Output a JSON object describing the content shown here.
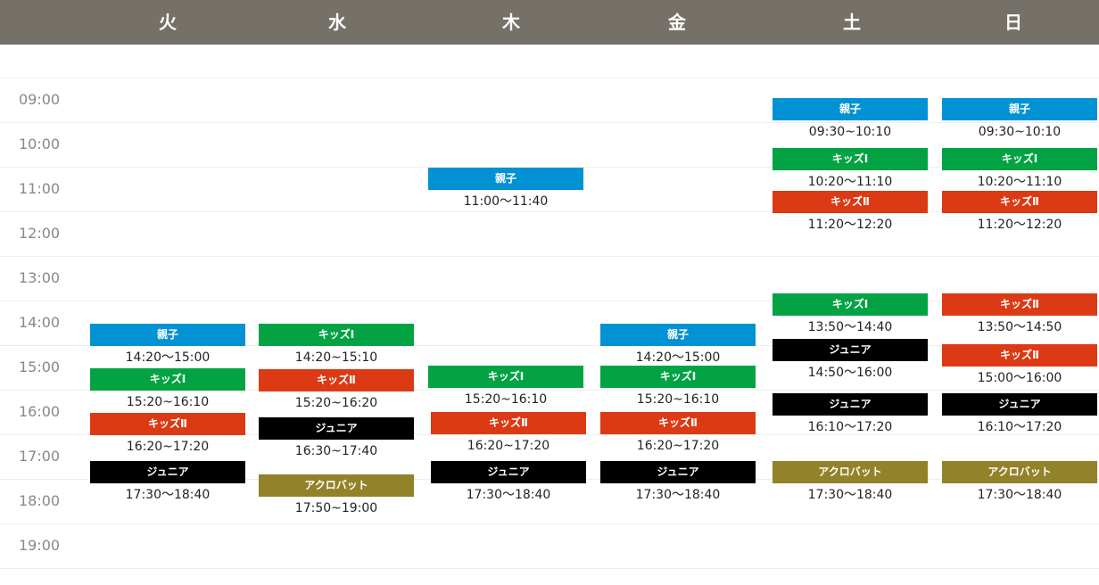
{
  "days": [
    {
      "label": "火",
      "center": 188
    },
    {
      "label": "水",
      "center": 378
    },
    {
      "label": "木",
      "center": 573
    },
    {
      "label": "金",
      "center": 759
    },
    {
      "label": "土",
      "center": 955
    },
    {
      "label": "日",
      "center": 1136
    }
  ],
  "hours": [
    "09:00",
    "10:00",
    "11:00",
    "12:00",
    "13:00",
    "14:00",
    "15:00",
    "16:00",
    "17:00",
    "18:00",
    "19:00"
  ],
  "classes": [
    {
      "day": 0,
      "name": "親子",
      "time": "14:20～15:00",
      "color": "blue"
    },
    {
      "day": 0,
      "name": "キッズⅠ",
      "time": "15:20~16:10",
      "color": "green"
    },
    {
      "day": 0,
      "name": "キッズⅡ",
      "time": "16:20~17:20",
      "color": "red"
    },
    {
      "day": 0,
      "name": "ジュニア",
      "time": "17:30～18:40",
      "color": "black"
    },
    {
      "day": 1,
      "name": "キッズⅠ",
      "time": "14:20~15:10",
      "color": "green"
    },
    {
      "day": 1,
      "name": "キッズⅡ",
      "time": "15:20~16:20",
      "color": "red"
    },
    {
      "day": 1,
      "name": "ジュニア",
      "time": "16:30~17:40",
      "color": "black"
    },
    {
      "day": 1,
      "name": "アクロバット",
      "time": "17:50~19:00",
      "color": "olive"
    },
    {
      "day": 2,
      "name": "親子",
      "time": "11:00～11:40",
      "color": "blue"
    },
    {
      "day": 2,
      "name": "キッズⅠ",
      "time": "15:20~16:10",
      "color": "green"
    },
    {
      "day": 2,
      "name": "キッズⅡ",
      "time": "16:20~17:20",
      "color": "red"
    },
    {
      "day": 2,
      "name": "ジュニア",
      "time": "17:30～18:40",
      "color": "black"
    },
    {
      "day": 3,
      "name": "親子",
      "time": "14:20～15:00",
      "color": "blue"
    },
    {
      "day": 3,
      "name": "キッズⅠ",
      "time": "15:20~16:10",
      "color": "green"
    },
    {
      "day": 3,
      "name": "キッズⅡ",
      "time": "16:20~17:20",
      "color": "red"
    },
    {
      "day": 3,
      "name": "ジュニア",
      "time": "17:30～18:40",
      "color": "black"
    },
    {
      "day": 4,
      "name": "親子",
      "time": "09:30~10:10",
      "color": "blue"
    },
    {
      "day": 4,
      "name": "キッズⅠ",
      "time": "10:20～11:10",
      "color": "green"
    },
    {
      "day": 4,
      "name": "キッズⅡ",
      "time": "11:20～12:20",
      "color": "red"
    },
    {
      "day": 4,
      "name": "キッズⅠ",
      "time": "13:50～14:40",
      "color": "green"
    },
    {
      "day": 4,
      "name": "ジュニア",
      "time": "14:50～16:00",
      "color": "black"
    },
    {
      "day": 4,
      "name": "ジュニア",
      "time": "16:10～17:20",
      "color": "black"
    },
    {
      "day": 4,
      "name": "アクロバット",
      "time": "17:30～18:40",
      "color": "olive"
    },
    {
      "day": 5,
      "name": "親子",
      "time": "09:30~10:10",
      "color": "blue"
    },
    {
      "day": 5,
      "name": "キッズⅠ",
      "time": "10:20～11:10",
      "color": "green"
    },
    {
      "day": 5,
      "name": "キッズⅡ",
      "time": "11:20～12:20",
      "color": "red"
    },
    {
      "day": 5,
      "name": "キッズⅡ",
      "time": "13:50～14:50",
      "color": "red"
    },
    {
      "day": 5,
      "name": "キッズⅡ",
      "time": "15:00～16:00",
      "color": "red"
    },
    {
      "day": 5,
      "name": "ジュニア",
      "time": "16:10～17:20",
      "color": "black"
    },
    {
      "day": 5,
      "name": "アクロバット",
      "time": "17:30～18:40",
      "color": "olive"
    }
  ],
  "colors": {
    "header": "#767168",
    "blue": "#0192d4",
    "green": "#03a344",
    "red": "#dc3a14",
    "black": "#000000",
    "olive": "#928229"
  }
}
